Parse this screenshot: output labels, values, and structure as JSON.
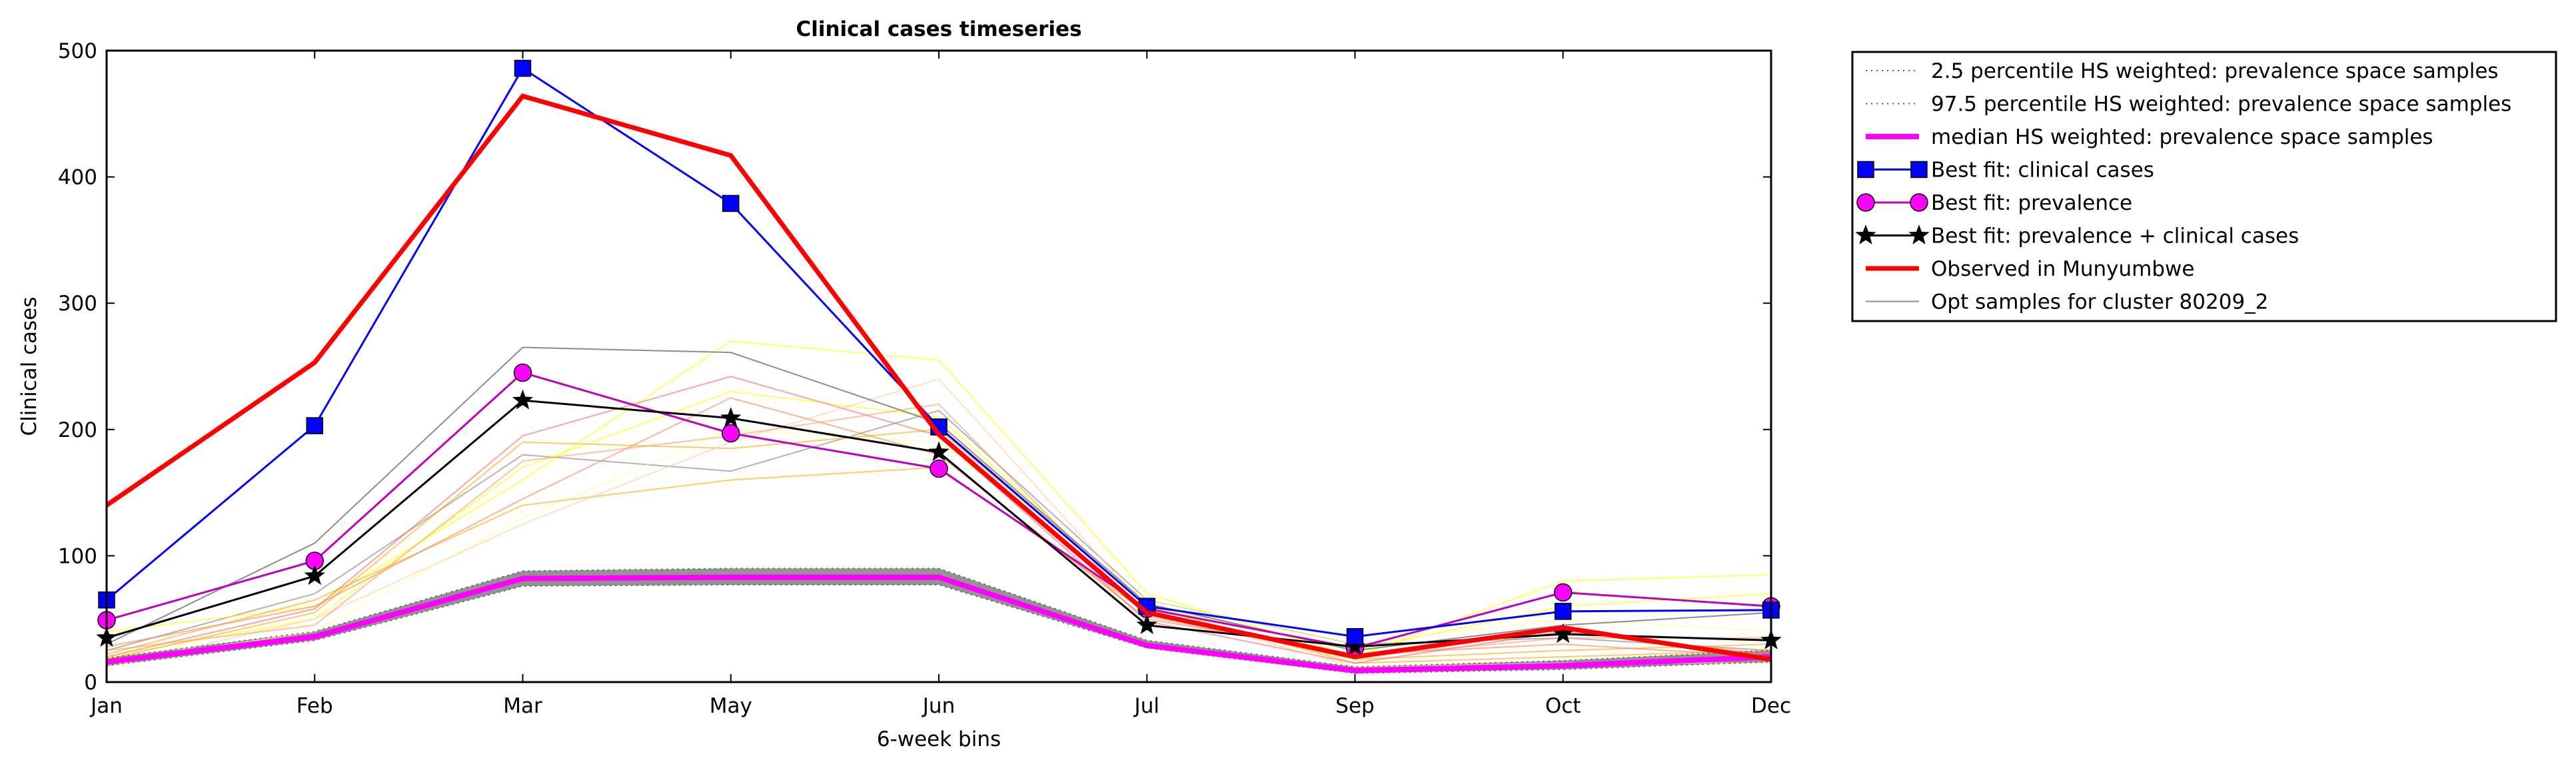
{
  "chart_data": {
    "type": "line",
    "title": "Clinical cases timeseries",
    "xlabel": "6-week bins",
    "ylabel": "Clinical cases",
    "categories": [
      "Jan",
      "Feb",
      "Mar",
      "May",
      "Jun",
      "Jul",
      "Sep",
      "Oct",
      "Dec"
    ],
    "ylim": [
      0,
      500
    ],
    "yticks": [
      "0",
      "100",
      "200",
      "300",
      "400",
      "500"
    ],
    "grid": false,
    "legend_position": "outside-right",
    "series": [
      {
        "name": "2.5 percentile HS weighted: prevalence space samples",
        "color": "#555555",
        "style": "dotted",
        "values": [
          13,
          33,
          76,
          77,
          77,
          27,
          7,
          10,
          16
        ]
      },
      {
        "name": "97.5 percentile HS weighted: prevalence space samples",
        "color": "#555555",
        "style": "dotted",
        "values": [
          19,
          40,
          88,
          90,
          90,
          33,
          12,
          17,
          25
        ]
      },
      {
        "name": "median HS weighted: prevalence space samples",
        "color": "#ff00ff",
        "style": "solid-thick",
        "values": [
          16,
          36,
          82,
          83,
          83,
          29,
          9,
          13,
          20
        ]
      },
      {
        "name": "Best fit: clinical cases",
        "color": "#0000ff",
        "style": "square-marker",
        "values": [
          65,
          203,
          486,
          379,
          202,
          60,
          36,
          56,
          57
        ]
      },
      {
        "name": "Best fit: prevalence",
        "color": "#bf00bf",
        "style": "circle-marker",
        "values": [
          49,
          96,
          245,
          197,
          169,
          58,
          27,
          71,
          60
        ]
      },
      {
        "name": "Best fit: prevalence + clinical cases",
        "color": "#000000",
        "style": "star-marker",
        "values": [
          35,
          84,
          223,
          209,
          182,
          45,
          28,
          38,
          33
        ]
      },
      {
        "name": "Observed in Munyumbwe",
        "color": "#ff0000",
        "style": "solid-thick",
        "values": [
          140,
          253,
          464,
          417,
          196,
          55,
          20,
          43,
          18
        ]
      },
      {
        "name": "Opt samples for cluster 80209_2",
        "color": "#808080",
        "style": "thin",
        "values": [
          30,
          110,
          265,
          261,
          205,
          62,
          25,
          45,
          55
        ]
      }
    ],
    "background_samples": [
      {
        "color": "#808080",
        "values": [
          25,
          70,
          180,
          167,
          215,
          65,
          30,
          35,
          25
        ]
      },
      {
        "color": "#ffff00",
        "values": [
          40,
          60,
          160,
          270,
          255,
          70,
          20,
          80,
          85
        ]
      },
      {
        "color": "#ffff00",
        "values": [
          20,
          50,
          170,
          230,
          210,
          60,
          25,
          60,
          70
        ]
      },
      {
        "color": "#ffff99",
        "values": [
          15,
          40,
          130,
          200,
          190,
          65,
          30,
          50,
          40
        ]
      },
      {
        "color": "#ffa500",
        "values": [
          18,
          55,
          190,
          185,
          200,
          60,
          15,
          20,
          25
        ]
      },
      {
        "color": "#ffa500",
        "values": [
          22,
          65,
          140,
          160,
          170,
          55,
          18,
          25,
          30
        ]
      },
      {
        "color": "#ff7f50",
        "values": [
          28,
          60,
          145,
          225,
          180,
          50,
          22,
          30,
          20
        ]
      },
      {
        "color": "#ff6666",
        "values": [
          20,
          58,
          195,
          242,
          195,
          48,
          15,
          40,
          22
        ]
      },
      {
        "color": "#ffcc99",
        "values": [
          12,
          50,
          125,
          190,
          240,
          58,
          12,
          15,
          15
        ]
      },
      {
        "color": "#ff9966",
        "values": [
          25,
          45,
          175,
          195,
          220,
          52,
          20,
          35,
          35
        ]
      }
    ]
  }
}
